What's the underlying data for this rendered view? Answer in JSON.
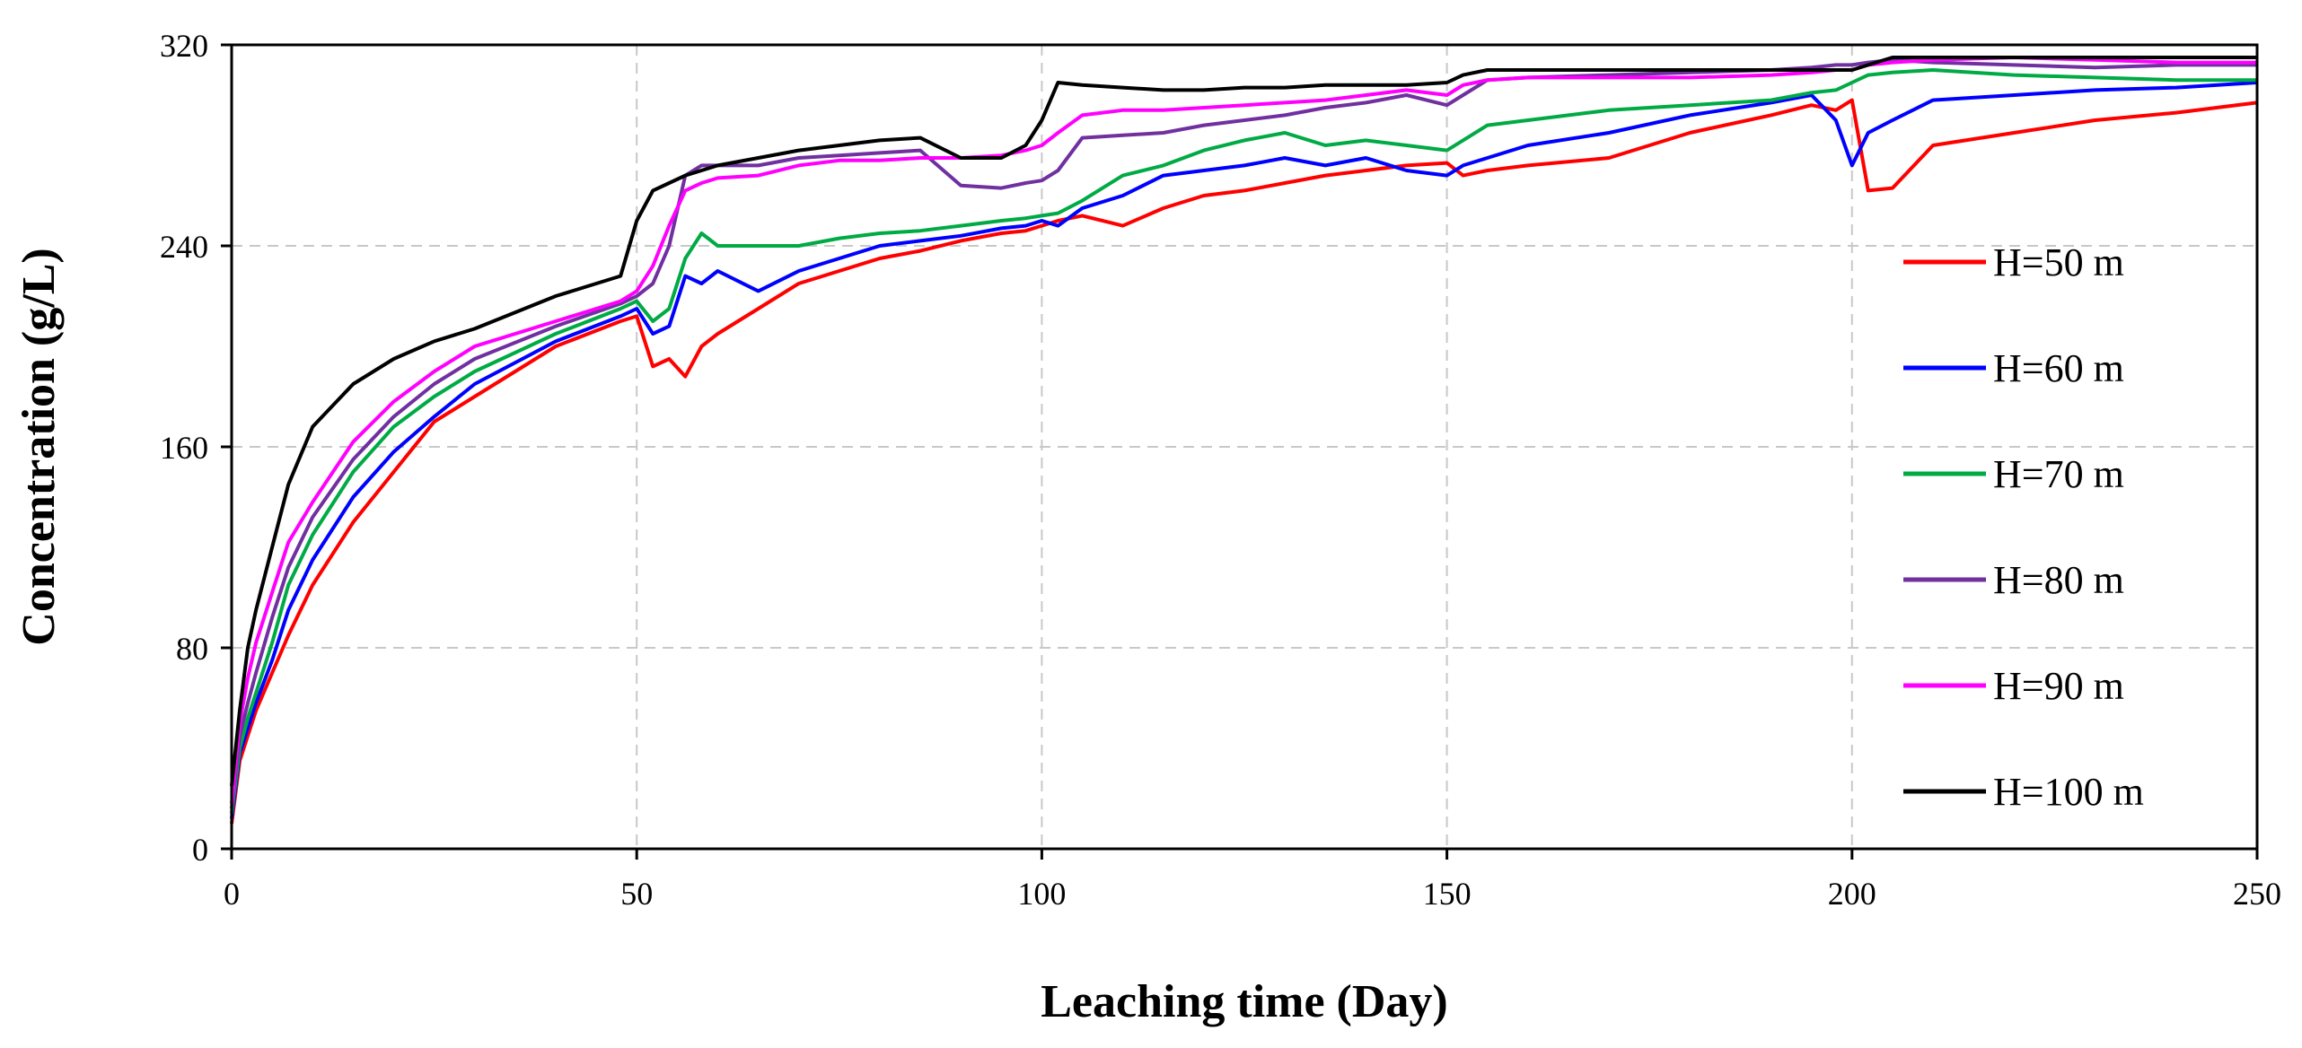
{
  "chart_data": {
    "type": "line",
    "xlabel": "Leaching time (Day)",
    "ylabel": "Concentration (g/L)",
    "xlim": [
      0,
      250
    ],
    "ylim": [
      0,
      320
    ],
    "xticks": [
      0,
      50,
      100,
      150,
      200,
      250
    ],
    "yticks": [
      0,
      80,
      160,
      240,
      320
    ],
    "grid": true,
    "legend_position": "right",
    "x": [
      0,
      1,
      2,
      3,
      5,
      7,
      10,
      15,
      20,
      25,
      30,
      40,
      48,
      50,
      52,
      54,
      56,
      58,
      60,
      65,
      70,
      75,
      80,
      85,
      90,
      95,
      98,
      100,
      102,
      105,
      110,
      115,
      120,
      125,
      130,
      135,
      140,
      145,
      150,
      152,
      155,
      160,
      170,
      180,
      190,
      195,
      198,
      200,
      202,
      205,
      210,
      220,
      230,
      240,
      250
    ],
    "series": [
      {
        "name": "H=50 m",
        "color": "#ff0000",
        "values": [
          10,
          35,
          45,
          55,
          70,
          85,
          105,
          130,
          150,
          170,
          180,
          200,
          210,
          212,
          192,
          195,
          188,
          200,
          205,
          215,
          225,
          230,
          235,
          238,
          242,
          245,
          246,
          248,
          250,
          252,
          248,
          255,
          260,
          262,
          265,
          268,
          270,
          272,
          273,
          268,
          270,
          272,
          275,
          285,
          292,
          296,
          294,
          298,
          262,
          263,
          280,
          285,
          290,
          293,
          297
        ]
      },
      {
        "name": "H=60 m",
        "color": "#0000ff",
        "values": [
          12,
          38,
          48,
          58,
          75,
          95,
          115,
          140,
          158,
          172,
          185,
          202,
          212,
          215,
          205,
          208,
          228,
          225,
          230,
          222,
          230,
          235,
          240,
          242,
          244,
          247,
          248,
          250,
          248,
          255,
          260,
          268,
          270,
          272,
          275,
          272,
          275,
          270,
          268,
          272,
          275,
          280,
          285,
          292,
          297,
          300,
          290,
          272,
          285,
          290,
          298,
          300,
          302,
          303,
          305
        ]
      },
      {
        "name": "H=70 m",
        "color": "#00aa44",
        "values": [
          14,
          40,
          52,
          62,
          82,
          105,
          125,
          150,
          168,
          180,
          190,
          205,
          215,
          218,
          210,
          215,
          235,
          245,
          240,
          240,
          240,
          243,
          245,
          246,
          248,
          250,
          251,
          252,
          253,
          258,
          268,
          272,
          278,
          282,
          285,
          280,
          282,
          280,
          278,
          282,
          288,
          290,
          294,
          296,
          298,
          301,
          302,
          305,
          308,
          309,
          310,
          308,
          307,
          306,
          306
        ]
      },
      {
        "name": "H=80 m",
        "color": "#7030a0",
        "values": [
          16,
          45,
          58,
          70,
          92,
          112,
          132,
          155,
          172,
          185,
          195,
          208,
          217,
          220,
          225,
          240,
          268,
          272,
          272,
          272,
          275,
          276,
          277,
          278,
          264,
          263,
          265,
          266,
          270,
          283,
          284,
          285,
          288,
          290,
          292,
          295,
          297,
          300,
          296,
          300,
          306,
          307,
          308,
          309,
          310,
          311,
          312,
          312,
          313,
          314,
          313,
          312,
          311,
          312,
          312
        ]
      },
      {
        "name": "H=90 m",
        "color": "#ff00ff",
        "values": [
          18,
          50,
          68,
          82,
          102,
          122,
          138,
          162,
          178,
          190,
          200,
          210,
          218,
          222,
          232,
          248,
          262,
          265,
          267,
          268,
          272,
          274,
          274,
          275,
          275,
          276,
          278,
          280,
          285,
          292,
          294,
          294,
          295,
          296,
          297,
          298,
          300,
          302,
          300,
          304,
          306,
          307,
          307,
          307,
          308,
          309,
          310,
          310,
          312,
          313,
          314,
          315,
          314,
          313,
          313
        ]
      },
      {
        "name": "H=100 m",
        "color": "#000000",
        "values": [
          25,
          55,
          80,
          95,
          120,
          145,
          168,
          185,
          195,
          202,
          207,
          220,
          228,
          250,
          262,
          265,
          268,
          270,
          272,
          275,
          278,
          280,
          282,
          283,
          275,
          275,
          280,
          290,
          305,
          304,
          303,
          302,
          302,
          303,
          303,
          304,
          304,
          304,
          305,
          308,
          310,
          310,
          310,
          310,
          310,
          310,
          310,
          310,
          312,
          315,
          315,
          315,
          315,
          315,
          315
        ]
      }
    ]
  }
}
